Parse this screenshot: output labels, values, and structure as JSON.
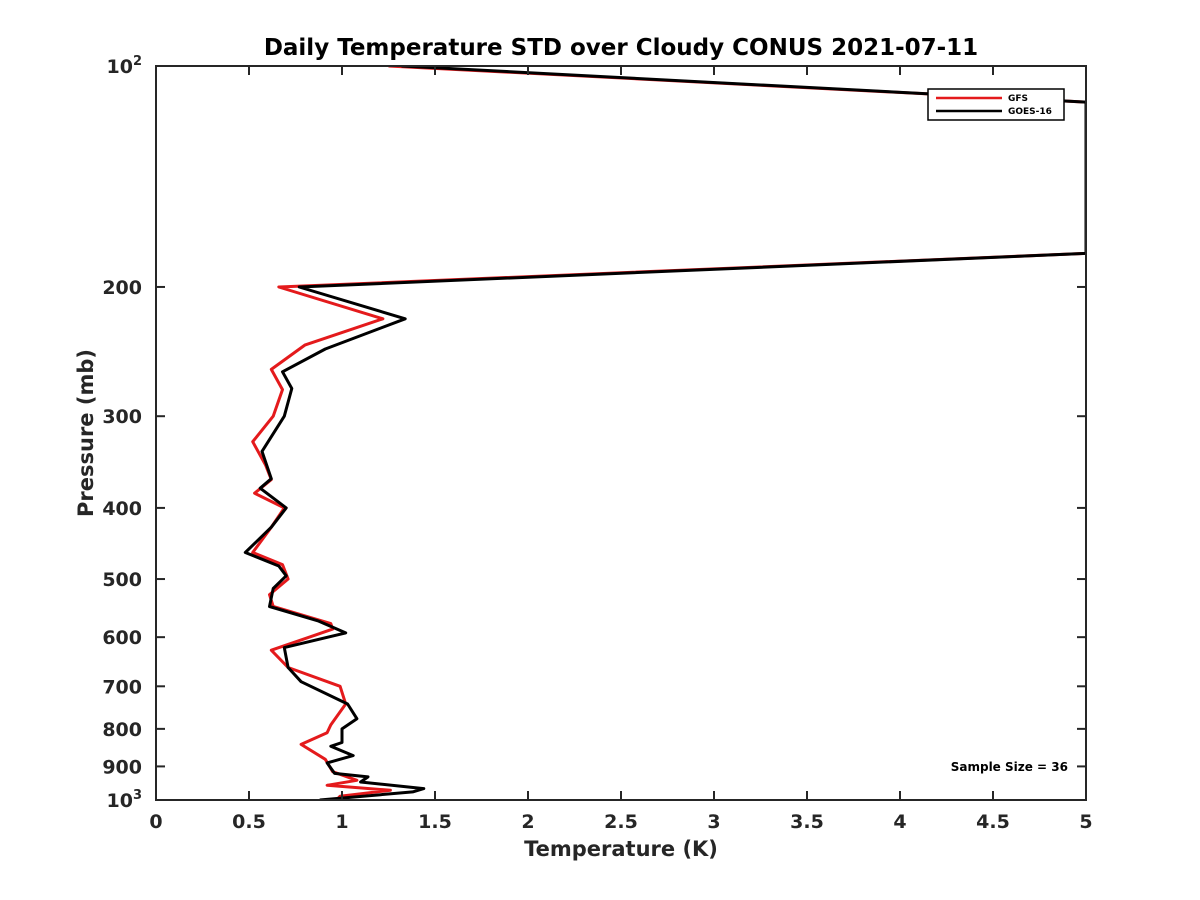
{
  "chart_data": {
    "type": "line",
    "title": "Daily Temperature STD over Cloudy CONUS 2021-07-11",
    "xlabel": "Temperature (K)",
    "ylabel": "Pressure (mb)",
    "xlim": [
      0,
      5
    ],
    "ylim": [
      100,
      1000
    ],
    "y_scale": "log",
    "y_reversed": true,
    "grid": false,
    "legend_position": "top-right",
    "x_ticks": [
      {
        "value": 0,
        "label": "0"
      },
      {
        "value": 0.5,
        "label": "0.5"
      },
      {
        "value": 1,
        "label": "1"
      },
      {
        "value": 1.5,
        "label": "1.5"
      },
      {
        "value": 2,
        "label": "2"
      },
      {
        "value": 2.5,
        "label": "2.5"
      },
      {
        "value": 3,
        "label": "3"
      },
      {
        "value": 3.5,
        "label": "3.5"
      },
      {
        "value": 4,
        "label": "4"
      },
      {
        "value": 4.5,
        "label": "4.5"
      },
      {
        "value": 5,
        "label": "5"
      }
    ],
    "y_ticks": [
      {
        "value": 100,
        "label": "10",
        "exp": "2"
      },
      {
        "value": 200,
        "label": "200"
      },
      {
        "value": 300,
        "label": "300"
      },
      {
        "value": 400,
        "label": "400"
      },
      {
        "value": 500,
        "label": "500"
      },
      {
        "value": 600,
        "label": "600"
      },
      {
        "value": 700,
        "label": "700"
      },
      {
        "value": 800,
        "label": "800"
      },
      {
        "value": 900,
        "label": "900"
      },
      {
        "value": 1000,
        "label": "10",
        "exp": "3"
      }
    ],
    "annotation": "Sample Size = 36",
    "series": [
      {
        "name": "GFS",
        "color": "#e41a1c",
        "points": [
          {
            "x": 1.25,
            "p": 100
          },
          {
            "x": 5.0,
            "p": 112
          },
          {
            "x": 5.0,
            "p": 180
          },
          {
            "x": 0.66,
            "p": 200
          },
          {
            "x": 1.22,
            "p": 221
          },
          {
            "x": 0.8,
            "p": 240
          },
          {
            "x": 0.62,
            "p": 259
          },
          {
            "x": 0.68,
            "p": 276
          },
          {
            "x": 0.63,
            "p": 300
          },
          {
            "x": 0.52,
            "p": 325
          },
          {
            "x": 0.59,
            "p": 350
          },
          {
            "x": 0.62,
            "p": 366
          },
          {
            "x": 0.53,
            "p": 382
          },
          {
            "x": 0.69,
            "p": 400
          },
          {
            "x": 0.62,
            "p": 425
          },
          {
            "x": 0.52,
            "p": 460
          },
          {
            "x": 0.68,
            "p": 478
          },
          {
            "x": 0.71,
            "p": 500
          },
          {
            "x": 0.61,
            "p": 525
          },
          {
            "x": 0.63,
            "p": 545
          },
          {
            "x": 0.94,
            "p": 575
          },
          {
            "x": 0.95,
            "p": 585
          },
          {
            "x": 0.62,
            "p": 625
          },
          {
            "x": 0.71,
            "p": 660
          },
          {
            "x": 0.99,
            "p": 700
          },
          {
            "x": 1.02,
            "p": 740
          },
          {
            "x": 0.94,
            "p": 790
          },
          {
            "x": 0.92,
            "p": 810
          },
          {
            "x": 0.78,
            "p": 840
          },
          {
            "x": 0.91,
            "p": 880
          },
          {
            "x": 0.95,
            "p": 915
          },
          {
            "x": 1.08,
            "p": 940
          },
          {
            "x": 0.92,
            "p": 955
          },
          {
            "x": 1.26,
            "p": 970
          },
          {
            "x": 0.99,
            "p": 988
          },
          {
            "x": 0.97,
            "p": 1000
          }
        ]
      },
      {
        "name": "GOES-16",
        "color": "#000000",
        "points": [
          {
            "x": 1.32,
            "p": 100
          },
          {
            "x": 5.0,
            "p": 112
          },
          {
            "x": 5.0,
            "p": 180
          },
          {
            "x": 0.77,
            "p": 200
          },
          {
            "x": 1.34,
            "p": 221
          },
          {
            "x": 0.91,
            "p": 243
          },
          {
            "x": 0.68,
            "p": 261
          },
          {
            "x": 0.73,
            "p": 275
          },
          {
            "x": 0.69,
            "p": 300
          },
          {
            "x": 0.57,
            "p": 335
          },
          {
            "x": 0.62,
            "p": 365
          },
          {
            "x": 0.56,
            "p": 376
          },
          {
            "x": 0.7,
            "p": 400
          },
          {
            "x": 0.62,
            "p": 425
          },
          {
            "x": 0.48,
            "p": 460
          },
          {
            "x": 0.66,
            "p": 480
          },
          {
            "x": 0.7,
            "p": 495
          },
          {
            "x": 0.63,
            "p": 515
          },
          {
            "x": 0.61,
            "p": 545
          },
          {
            "x": 0.87,
            "p": 570
          },
          {
            "x": 1.02,
            "p": 592
          },
          {
            "x": 0.69,
            "p": 620
          },
          {
            "x": 0.71,
            "p": 660
          },
          {
            "x": 0.78,
            "p": 690
          },
          {
            "x": 1.03,
            "p": 740
          },
          {
            "x": 1.08,
            "p": 775
          },
          {
            "x": 1.0,
            "p": 800
          },
          {
            "x": 1.0,
            "p": 835
          },
          {
            "x": 0.94,
            "p": 845
          },
          {
            "x": 1.06,
            "p": 870
          },
          {
            "x": 0.92,
            "p": 890
          },
          {
            "x": 0.96,
            "p": 920
          },
          {
            "x": 1.14,
            "p": 930
          },
          {
            "x": 1.1,
            "p": 945
          },
          {
            "x": 1.44,
            "p": 965
          },
          {
            "x": 1.38,
            "p": 975
          },
          {
            "x": 0.88,
            "p": 1000
          }
        ]
      }
    ]
  }
}
